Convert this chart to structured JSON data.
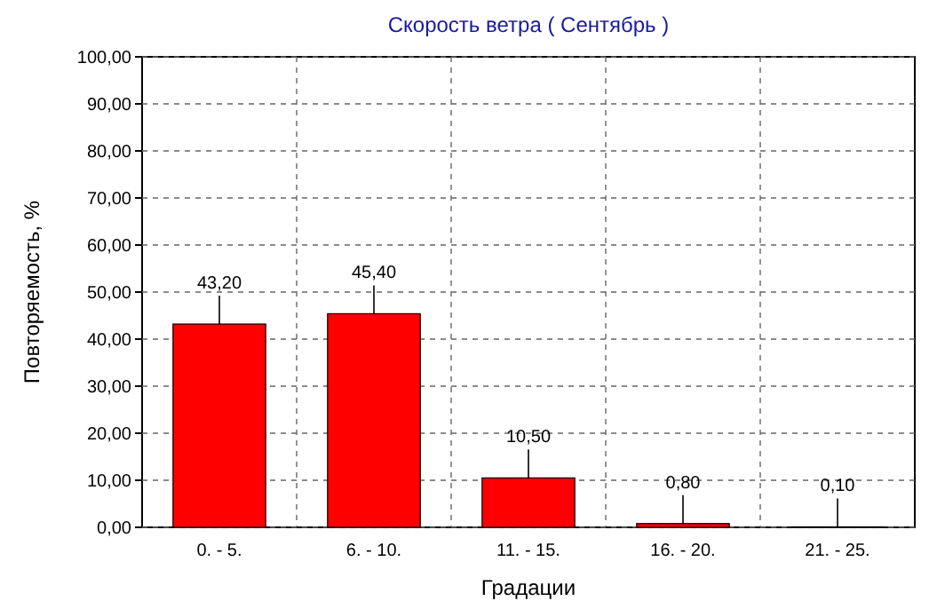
{
  "chart_data": {
    "type": "bar",
    "title": "Скорость ветра    ( Сентябрь )",
    "xlabel": "Градации",
    "ylabel": "Повторяемость, %",
    "categories": [
      "0. - 5.",
      "6. - 10.",
      "11. - 15.",
      "16. - 20.",
      "21. - 25."
    ],
    "values": [
      43.2,
      45.4,
      10.5,
      0.8,
      0.1
    ],
    "value_labels": [
      "43,20",
      "45,40",
      "10,50",
      "0,80",
      "0,10"
    ],
    "color": "#ff0000",
    "ylim": [
      0,
      100
    ],
    "yticks": [
      {
        "value": 0,
        "label": "0,00"
      },
      {
        "value": 10,
        "label": "10,00"
      },
      {
        "value": 20,
        "label": "20,00"
      },
      {
        "value": 30,
        "label": "30,00"
      },
      {
        "value": 40,
        "label": "40,00"
      },
      {
        "value": 50,
        "label": "50,00"
      },
      {
        "value": 60,
        "label": "60,00"
      },
      {
        "value": 70,
        "label": "70,00"
      },
      {
        "value": 80,
        "label": "80,00"
      },
      {
        "value": 90,
        "label": "90,00"
      },
      {
        "value": 100,
        "label": "100,00"
      }
    ],
    "grid": true
  }
}
